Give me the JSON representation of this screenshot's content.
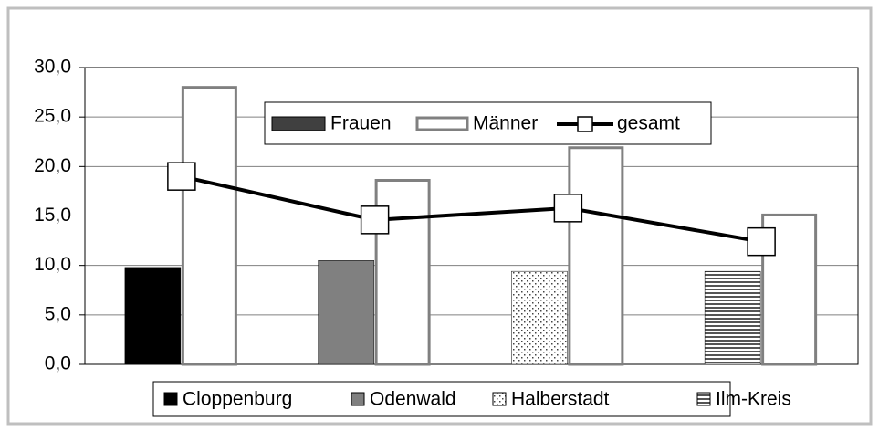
{
  "chart_data": {
    "type": "bar",
    "categories": [
      "Cloppenburg",
      "Odenwald",
      "Halberstadt",
      "Ilm-Kreis"
    ],
    "series": [
      {
        "name": "Frauen",
        "color": "#404040",
        "values": [
          9.8,
          10.5,
          9.4,
          9.4
        ],
        "colors": [
          "#000000",
          "#808080",
          "#ffffff",
          "#ffffff"
        ],
        "patterns": [
          "solid",
          "solid",
          "dots",
          "stripes"
        ]
      },
      {
        "name": "Männer",
        "color": "#808080",
        "values": [
          28.0,
          18.6,
          21.9,
          15.1
        ]
      },
      {
        "name": "gesamt",
        "type": "line",
        "color": "#000000",
        "values": [
          19.0,
          14.6,
          15.8,
          12.4
        ]
      }
    ],
    "ylim": [
      0,
      30
    ],
    "yticks": [
      {
        "value": 0,
        "label": "0,0"
      },
      {
        "value": 5,
        "label": "5,0"
      },
      {
        "value": 10,
        "label": "10,0"
      },
      {
        "value": 15,
        "label": "15,0"
      },
      {
        "value": 20,
        "label": "20,0"
      },
      {
        "value": 25,
        "label": "25,0"
      },
      {
        "value": 30,
        "label": "30,0"
      }
    ],
    "grid": true
  }
}
